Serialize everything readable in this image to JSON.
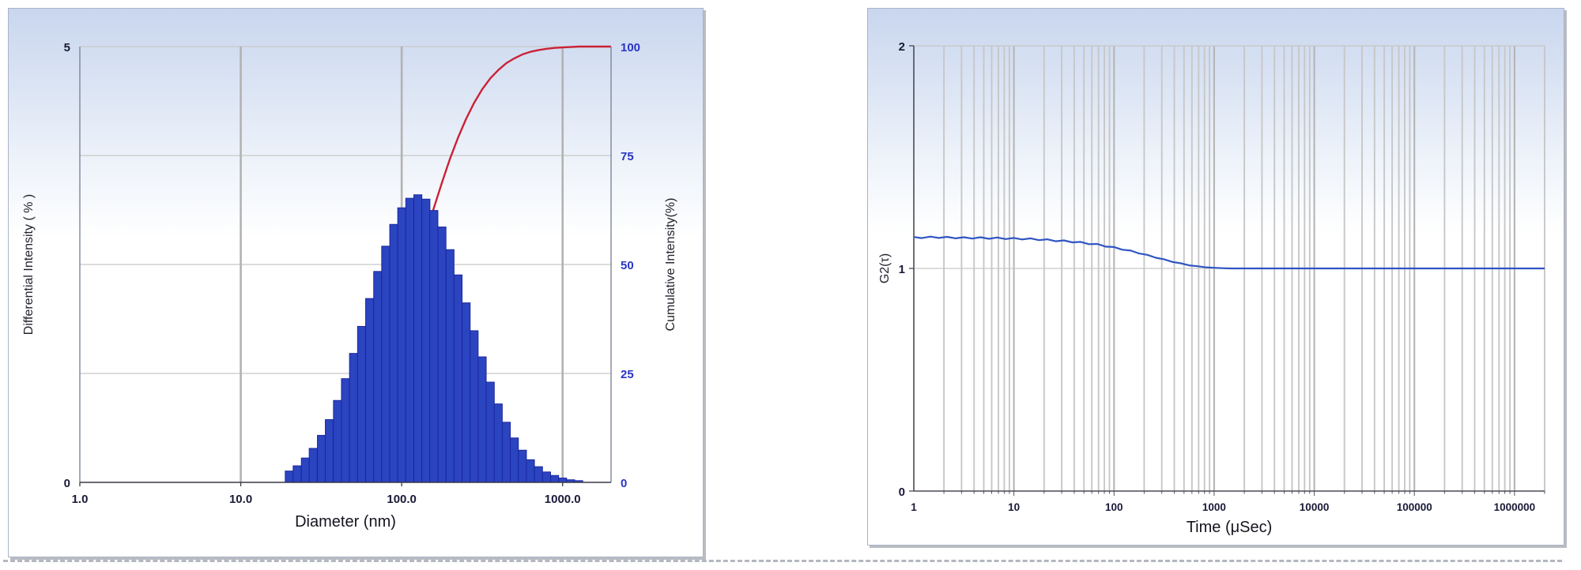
{
  "appearance": {
    "page_background": "#ffffff",
    "panel_gradient_top": "#c9d6ee",
    "panel_border": "#a9b4c6",
    "panel_shadow": "#b9bcc2",
    "minor_gridline_color": "#c7c7c7",
    "major_gridline_color": "#b2b2b2"
  },
  "chart_data": [
    {
      "type": "bar",
      "subtype": "particle-size-distribution-histogram-with-cumulative-line",
      "title": "",
      "xlabel": "Diameter (nm)",
      "ylabel_left": "Differential Intensity ( % )",
      "ylabel_right": "Cumulative Intensity(%)",
      "x_scale": "log",
      "xlim": [
        1,
        2000
      ],
      "ylim_left": [
        0,
        5
      ],
      "ylim_right": [
        0,
        100
      ],
      "x_ticks": [
        {
          "value": 1,
          "label": "1.0"
        },
        {
          "value": 10,
          "label": "10.0"
        },
        {
          "value": 100,
          "label": "100.0"
        },
        {
          "value": 1000,
          "label": "1000.0"
        }
      ],
      "y_ticks_left": [
        {
          "value": 5,
          "label": "5"
        },
        {
          "value": 0,
          "label": "0"
        }
      ],
      "y_ticks_right": [
        100,
        75,
        50,
        25,
        0
      ],
      "gridlines_vertical": [
        10,
        100,
        1000
      ],
      "gridlines_horizontal": [
        25,
        50,
        75,
        100
      ],
      "bar_bin_ratio": 1.122,
      "colors": {
        "bar_fill": "#2b44c0",
        "bar_stroke": "#17249b",
        "cumulative_line": "#cc2136"
      },
      "series": {
        "diameters": [
          20.0,
          22.4,
          25.2,
          28.2,
          31.7,
          35.5,
          39.9,
          44.7,
          50.2,
          56.3,
          63.2,
          70.9,
          79.5,
          89.2,
          100.1,
          112.3,
          126.0,
          141.4,
          158.6,
          178.0,
          199.7,
          224.0,
          251.4,
          282.0,
          316.4,
          355.0,
          398.3,
          446.9,
          501.4,
          562.6,
          631.2,
          708.2,
          794.5,
          891.4,
          1000.2,
          1122.1,
          1259.0
        ],
        "differential": [
          0.13,
          0.19,
          0.28,
          0.39,
          0.54,
          0.72,
          0.94,
          1.19,
          1.48,
          1.79,
          2.11,
          2.42,
          2.71,
          2.96,
          3.15,
          3.26,
          3.3,
          3.25,
          3.12,
          2.93,
          2.67,
          2.38,
          2.06,
          1.74,
          1.44,
          1.15,
          0.9,
          0.69,
          0.51,
          0.37,
          0.26,
          0.18,
          0.12,
          0.08,
          0.05,
          0.03,
          0.02
        ],
        "cumulative": [
          0.5,
          0.9,
          1.3,
          2.0,
          2.8,
          4.1,
          5.6,
          7.7,
          10.3,
          13.4,
          17.2,
          21.6,
          26.5,
          32.0,
          37.9,
          44.1,
          50.4,
          56.8,
          63.0,
          68.8,
          74.3,
          79.1,
          83.4,
          87.1,
          90.2,
          92.7,
          94.6,
          96.2,
          97.3,
          98.2,
          98.8,
          99.2,
          99.5,
          99.7,
          99.8,
          99.9,
          100.0
        ]
      }
    },
    {
      "type": "line",
      "subtype": "autocorrelation-function",
      "title": "",
      "xlabel": "Time (μSec)",
      "ylabel": "G2(τ)",
      "x_scale": "log",
      "xlim": [
        1,
        2000000
      ],
      "ylim": [
        0,
        2
      ],
      "x_ticks": [
        {
          "value": 1,
          "label": "1"
        },
        {
          "value": 10,
          "label": "10"
        },
        {
          "value": 100,
          "label": "100"
        },
        {
          "value": 1000,
          "label": "1000"
        },
        {
          "value": 10000,
          "label": "10000"
        },
        {
          "value": 100000,
          "label": "100000"
        },
        {
          "value": 1000000,
          "label": "1000000"
        }
      ],
      "y_ticks": [
        2,
        1,
        0
      ],
      "gridlines_horizontal": [
        1,
        2
      ],
      "colors": {
        "line": "#2f55c4"
      },
      "series": {
        "times": [
          1,
          1.2,
          1.47,
          1.78,
          2.15,
          2.61,
          3.16,
          3.83,
          4.64,
          5.62,
          6.81,
          8.25,
          10,
          12.1,
          14.7,
          17.8,
          21.5,
          26.1,
          31.6,
          38.3,
          46.4,
          56.2,
          68.1,
          82.5,
          100,
          121,
          147,
          178,
          215,
          261,
          316,
          383,
          464,
          562,
          681,
          825,
          1000,
          1210,
          1470,
          2150,
          3160,
          4640,
          10000,
          46400,
          100000,
          464000,
          1000000,
          2000000
        ],
        "g2": [
          1.141,
          1.136,
          1.143,
          1.137,
          1.142,
          1.135,
          1.14,
          1.134,
          1.14,
          1.133,
          1.139,
          1.132,
          1.137,
          1.13,
          1.135,
          1.127,
          1.131,
          1.122,
          1.126,
          1.117,
          1.119,
          1.109,
          1.11,
          1.098,
          1.096,
          1.084,
          1.08,
          1.067,
          1.061,
          1.048,
          1.041,
          1.029,
          1.023,
          1.014,
          1.01,
          1.005,
          1.003,
          1.001,
          1.0,
          1.0,
          1.0,
          1.0,
          1.0,
          1.0,
          1.0,
          1.0,
          1.0,
          1.0
        ]
      }
    }
  ]
}
